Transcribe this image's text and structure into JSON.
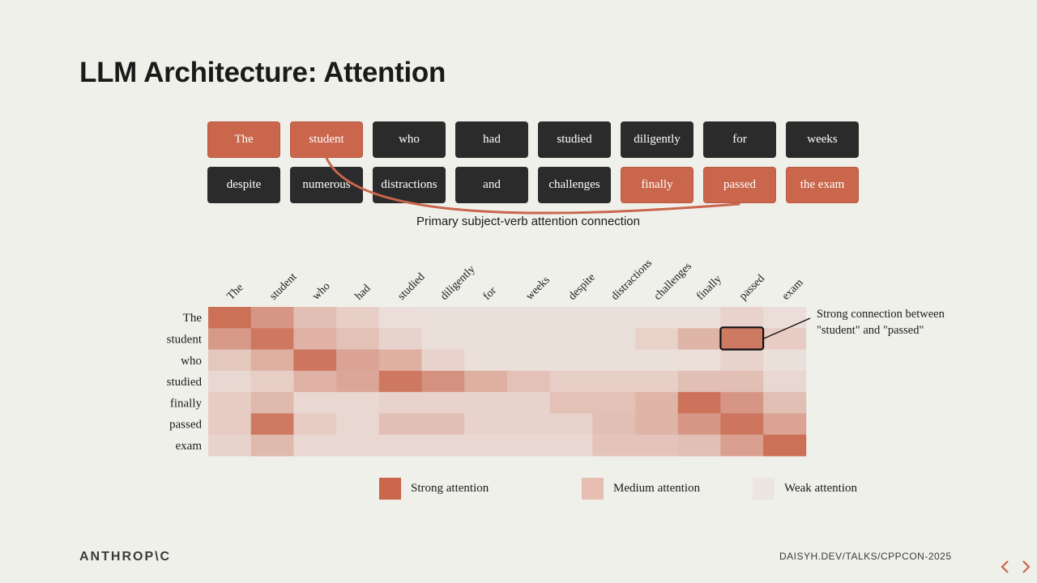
{
  "slide": {
    "title": "LLM Architecture: Attention",
    "connection_label": "Primary subject-verb attention connection",
    "footer_logo": "ANTHROP\\C",
    "footer_url": "DAISYH.DEV/TALKS/CPPCON-2025"
  },
  "tokens": [
    {
      "text": "The",
      "highlight": true
    },
    {
      "text": "student",
      "highlight": true
    },
    {
      "text": "who",
      "highlight": false
    },
    {
      "text": "had",
      "highlight": false
    },
    {
      "text": "studied",
      "highlight": false
    },
    {
      "text": "diligently",
      "highlight": false
    },
    {
      "text": "for",
      "highlight": false
    },
    {
      "text": "weeks",
      "highlight": false
    },
    {
      "text": "despite",
      "highlight": false
    },
    {
      "text": "numerous",
      "highlight": false
    },
    {
      "text": "distractions",
      "highlight": false
    },
    {
      "text": "and",
      "highlight": false
    },
    {
      "text": "challenges",
      "highlight": false
    },
    {
      "text": "finally",
      "highlight": true
    },
    {
      "text": "passed",
      "highlight": true
    },
    {
      "text": "the exam",
      "highlight": true
    }
  ],
  "colors": {
    "strong": "#c9664c",
    "medium": "#e6bfb2",
    "weak": "#ede5e1",
    "dark_token": "#2b2b2b",
    "background": "#f0f0eb"
  },
  "heatmap": {
    "columns": [
      "The",
      "student",
      "who",
      "had",
      "studied",
      "diligently",
      "for",
      "weeks",
      "despite",
      "distractions",
      "challenges",
      "finally",
      "passed",
      "exam"
    ],
    "rows": [
      "The",
      "student",
      "who",
      "studied",
      "finally",
      "passed",
      "exam"
    ],
    "values": [
      [
        0.92,
        0.62,
        0.3,
        0.18,
        0.06,
        0.05,
        0.05,
        0.05,
        0.05,
        0.05,
        0.05,
        0.05,
        0.15,
        0.06
      ],
      [
        0.6,
        0.86,
        0.4,
        0.28,
        0.14,
        0.05,
        0.05,
        0.05,
        0.05,
        0.05,
        0.16,
        0.38,
        0.85,
        0.2
      ],
      [
        0.24,
        0.42,
        0.88,
        0.52,
        0.42,
        0.15,
        0.05,
        0.05,
        0.05,
        0.05,
        0.05,
        0.06,
        0.14,
        0.05
      ],
      [
        0.1,
        0.18,
        0.4,
        0.5,
        0.86,
        0.66,
        0.42,
        0.28,
        0.18,
        0.18,
        0.18,
        0.3,
        0.3,
        0.1
      ],
      [
        0.2,
        0.35,
        0.1,
        0.1,
        0.14,
        0.14,
        0.14,
        0.14,
        0.28,
        0.28,
        0.38,
        0.9,
        0.62,
        0.3
      ],
      [
        0.2,
        0.85,
        0.2,
        0.1,
        0.3,
        0.3,
        0.14,
        0.14,
        0.14,
        0.3,
        0.38,
        0.62,
        0.88,
        0.52
      ],
      [
        0.14,
        0.35,
        0.1,
        0.1,
        0.1,
        0.1,
        0.1,
        0.1,
        0.1,
        0.26,
        0.26,
        0.3,
        0.55,
        0.92
      ]
    ],
    "highlight_cell": {
      "row": "student",
      "column": "passed"
    },
    "annotation": [
      "Strong connection between",
      "\"student\" and \"passed\""
    ]
  },
  "legend": [
    {
      "label": "Strong attention",
      "level": "strong"
    },
    {
      "label": "Medium attention",
      "level": "medium"
    },
    {
      "label": "Weak attention",
      "level": "weak"
    }
  ],
  "nav": {
    "prev_icon": "chevron-left-icon",
    "next_icon": "chevron-right-icon"
  }
}
